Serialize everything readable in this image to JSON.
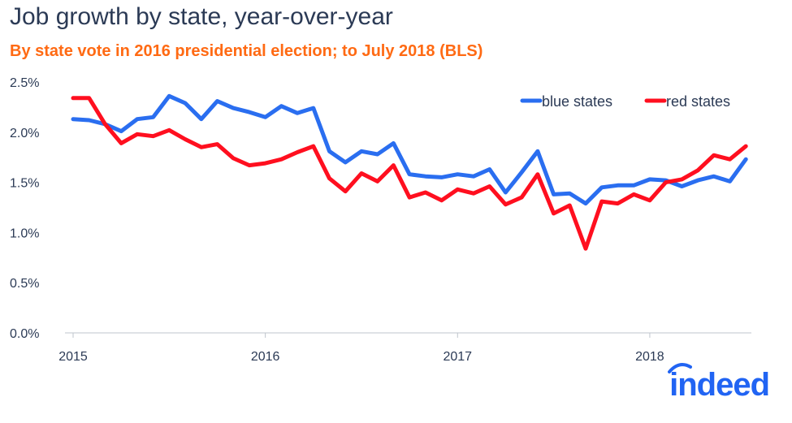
{
  "chart_data": {
    "type": "line",
    "title": "Job growth by state, year-over-year",
    "subtitle": "By state vote in 2016 presidential election; to July 2018 (BLS)",
    "x_start": "2015-01",
    "x_end": "2018-07",
    "x_frequency": "monthly",
    "x_tick_labels": [
      "2015",
      "2016",
      "2017",
      "2018"
    ],
    "y_tick_labels": [
      "0.0%",
      "0.5%",
      "1.0%",
      "1.5%",
      "2.0%",
      "2.5%"
    ],
    "ylim": [
      0,
      2.5
    ],
    "grid": false,
    "legend_position": "top-right",
    "series": [
      {
        "name": "blue states",
        "color": "#2a6ef0",
        "values": [
          2.13,
          2.12,
          2.08,
          2.01,
          2.13,
          2.15,
          2.36,
          2.29,
          2.13,
          2.31,
          2.24,
          2.2,
          2.15,
          2.26,
          2.19,
          2.24,
          1.81,
          1.7,
          1.81,
          1.78,
          1.89,
          1.58,
          1.56,
          1.55,
          1.58,
          1.56,
          1.63,
          1.4,
          1.6,
          1.81,
          1.38,
          1.39,
          1.29,
          1.45,
          1.47,
          1.47,
          1.53,
          1.52,
          1.46,
          1.52,
          1.56,
          1.51,
          1.73
        ]
      },
      {
        "name": "red states",
        "color": "#ff0f1f",
        "values": [
          2.34,
          2.34,
          2.08,
          1.89,
          1.98,
          1.96,
          2.02,
          1.93,
          1.85,
          1.88,
          1.74,
          1.67,
          1.69,
          1.73,
          1.8,
          1.86,
          1.54,
          1.41,
          1.59,
          1.51,
          1.67,
          1.35,
          1.4,
          1.32,
          1.43,
          1.39,
          1.46,
          1.28,
          1.35,
          1.58,
          1.19,
          1.27,
          0.84,
          1.31,
          1.29,
          1.38,
          1.32,
          1.5,
          1.53,
          1.62,
          1.77,
          1.73,
          1.86
        ]
      }
    ]
  },
  "logo": {
    "text": "indeed",
    "color": "#2164f3"
  }
}
